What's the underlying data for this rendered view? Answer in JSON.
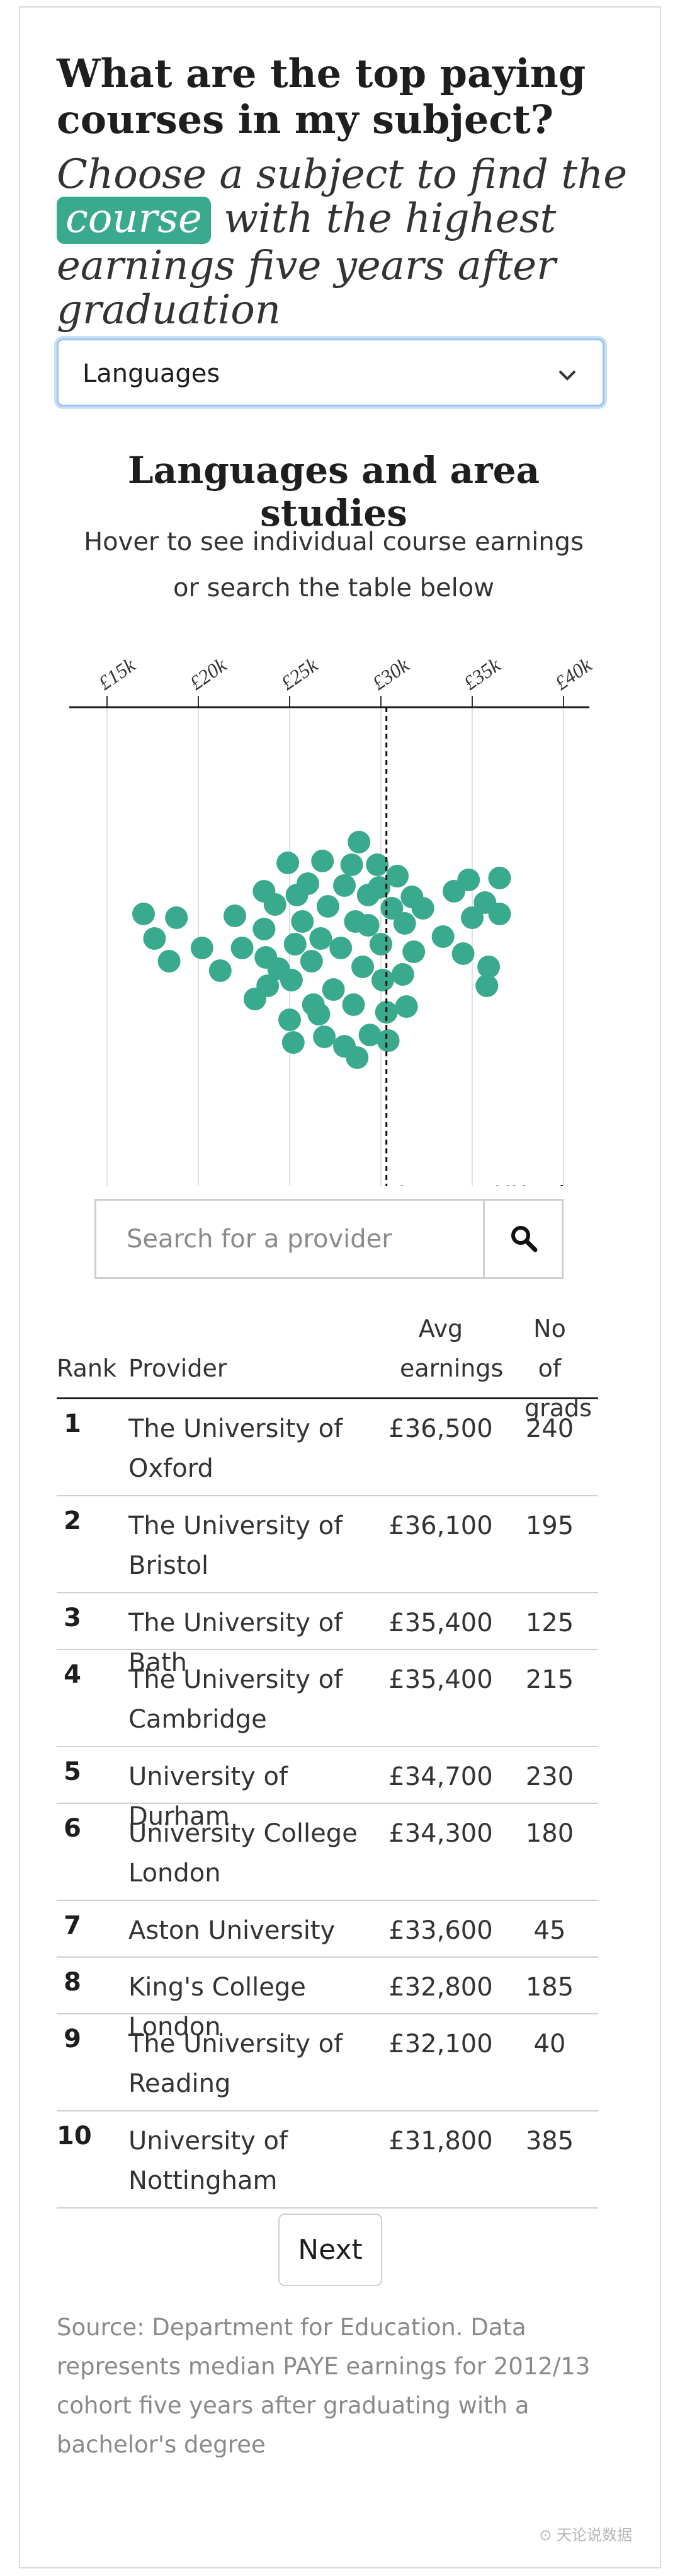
{
  "heading": "What are the top paying courses in my subject?",
  "subheading": {
    "before": "Choose a subject to find the",
    "highlight": "course",
    "after": "with the highest earnings five years after graduation"
  },
  "subject_select": {
    "value": "Languages",
    "icon": "chevron-down-icon"
  },
  "chart_title": "Languages and area studies",
  "chart_subtitle": "Hover to see individual course earnings or search the table below",
  "chart_data": {
    "type": "scatter",
    "title": "Languages and area studies",
    "x_ticks": [
      "£15k",
      "£20k",
      "£25k",
      "£30k",
      "£35k",
      "£40k"
    ],
    "xlim": [
      14000,
      40000
    ],
    "grid": true,
    "reference_line": {
      "x": 30300,
      "label": "Average UK salary"
    },
    "point_color": "#3aaa8f",
    "points": [
      {
        "x": 17000,
        "y": 9.4
      },
      {
        "x": 17600,
        "y": 8.1
      },
      {
        "x": 18400,
        "y": 6.9
      },
      {
        "x": 18800,
        "y": 9.2
      },
      {
        "x": 20200,
        "y": 7.6
      },
      {
        "x": 21200,
        "y": 6.4
      },
      {
        "x": 22000,
        "y": 9.3
      },
      {
        "x": 22400,
        "y": 7.6
      },
      {
        "x": 23100,
        "y": 4.9
      },
      {
        "x": 23600,
        "y": 10.6
      },
      {
        "x": 23600,
        "y": 8.6
      },
      {
        "x": 23700,
        "y": 7.1
      },
      {
        "x": 23800,
        "y": 5.6
      },
      {
        "x": 24200,
        "y": 9.9
      },
      {
        "x": 24400,
        "y": 6.5
      },
      {
        "x": 24900,
        "y": 12.1
      },
      {
        "x": 25000,
        "y": 3.8
      },
      {
        "x": 25100,
        "y": 5.9
      },
      {
        "x": 25200,
        "y": 2.6
      },
      {
        "x": 25300,
        "y": 7.8
      },
      {
        "x": 25400,
        "y": 10.4
      },
      {
        "x": 25700,
        "y": 9.0
      },
      {
        "x": 26000,
        "y": 11.0
      },
      {
        "x": 26200,
        "y": 6.9
      },
      {
        "x": 26300,
        "y": 4.6
      },
      {
        "x": 26600,
        "y": 4.1
      },
      {
        "x": 26700,
        "y": 8.1
      },
      {
        "x": 26800,
        "y": 12.2
      },
      {
        "x": 26900,
        "y": 2.9
      },
      {
        "x": 27100,
        "y": 9.8
      },
      {
        "x": 27400,
        "y": 5.4
      },
      {
        "x": 27800,
        "y": 7.6
      },
      {
        "x": 28000,
        "y": 10.9
      },
      {
        "x": 28000,
        "y": 2.4
      },
      {
        "x": 28400,
        "y": 12.0
      },
      {
        "x": 28500,
        "y": 4.6
      },
      {
        "x": 28600,
        "y": 9.0
      },
      {
        "x": 28700,
        "y": 1.8
      },
      {
        "x": 28800,
        "y": 13.2
      },
      {
        "x": 29000,
        "y": 6.6
      },
      {
        "x": 29300,
        "y": 10.4
      },
      {
        "x": 29300,
        "y": 8.8
      },
      {
        "x": 29400,
        "y": 3.0
      },
      {
        "x": 29800,
        "y": 12.0
      },
      {
        "x": 29900,
        "y": 10.8
      },
      {
        "x": 30000,
        "y": 7.8
      },
      {
        "x": 30100,
        "y": 5.9
      },
      {
        "x": 30300,
        "y": 4.2
      },
      {
        "x": 30400,
        "y": 2.7
      },
      {
        "x": 30600,
        "y": 9.7
      },
      {
        "x": 30900,
        "y": 11.4
      },
      {
        "x": 31200,
        "y": 6.2
      },
      {
        "x": 31300,
        "y": 8.9
      },
      {
        "x": 31400,
        "y": 4.5
      },
      {
        "x": 31700,
        "y": 10.3
      },
      {
        "x": 31800,
        "y": 7.4
      },
      {
        "x": 32300,
        "y": 9.7
      },
      {
        "x": 33400,
        "y": 8.2
      },
      {
        "x": 34000,
        "y": 10.6
      },
      {
        "x": 34500,
        "y": 7.3
      },
      {
        "x": 34800,
        "y": 11.2
      },
      {
        "x": 35000,
        "y": 9.2
      },
      {
        "x": 35700,
        "y": 10.0
      },
      {
        "x": 35800,
        "y": 5.6
      },
      {
        "x": 35900,
        "y": 6.6
      },
      {
        "x": 36500,
        "y": 9.4
      },
      {
        "x": 36500,
        "y": 11.3
      }
    ]
  },
  "search": {
    "placeholder": "Search for a provider",
    "icon": "search-icon"
  },
  "table": {
    "headers": {
      "rank": "Rank",
      "provider": "Provider",
      "earnings": "Avg earnings",
      "grads": "No of grads"
    },
    "rows": [
      {
        "rank": "1",
        "provider": "The University of Oxford",
        "earnings": "£36,500",
        "grads": "240"
      },
      {
        "rank": "2",
        "provider": "The University of Bristol",
        "earnings": "£36,100",
        "grads": "195"
      },
      {
        "rank": "3",
        "provider": "The University of Bath",
        "earnings": "£35,400",
        "grads": "125"
      },
      {
        "rank": "4",
        "provider": "The University of Cambridge",
        "earnings": "£35,400",
        "grads": "215"
      },
      {
        "rank": "5",
        "provider": "University of Durham",
        "earnings": "£34,700",
        "grads": "230"
      },
      {
        "rank": "6",
        "provider": "University College London",
        "earnings": "£34,300",
        "grads": "180"
      },
      {
        "rank": "7",
        "provider": "Aston University",
        "earnings": "£33,600",
        "grads": "45"
      },
      {
        "rank": "8",
        "provider": "King's College London",
        "earnings": "£32,800",
        "grads": "185"
      },
      {
        "rank": "9",
        "provider": "The University of Reading",
        "earnings": "£32,100",
        "grads": "40"
      },
      {
        "rank": "10",
        "provider": "University of Nottingham",
        "earnings": "£31,800",
        "grads": "385"
      }
    ]
  },
  "next_label": "Next",
  "source": "Source: Department for Education. Data represents median PAYE earnings for 2012/13 cohort five years after graduating with a bachelor's degree",
  "watermark": "⊙ 天论说数据"
}
